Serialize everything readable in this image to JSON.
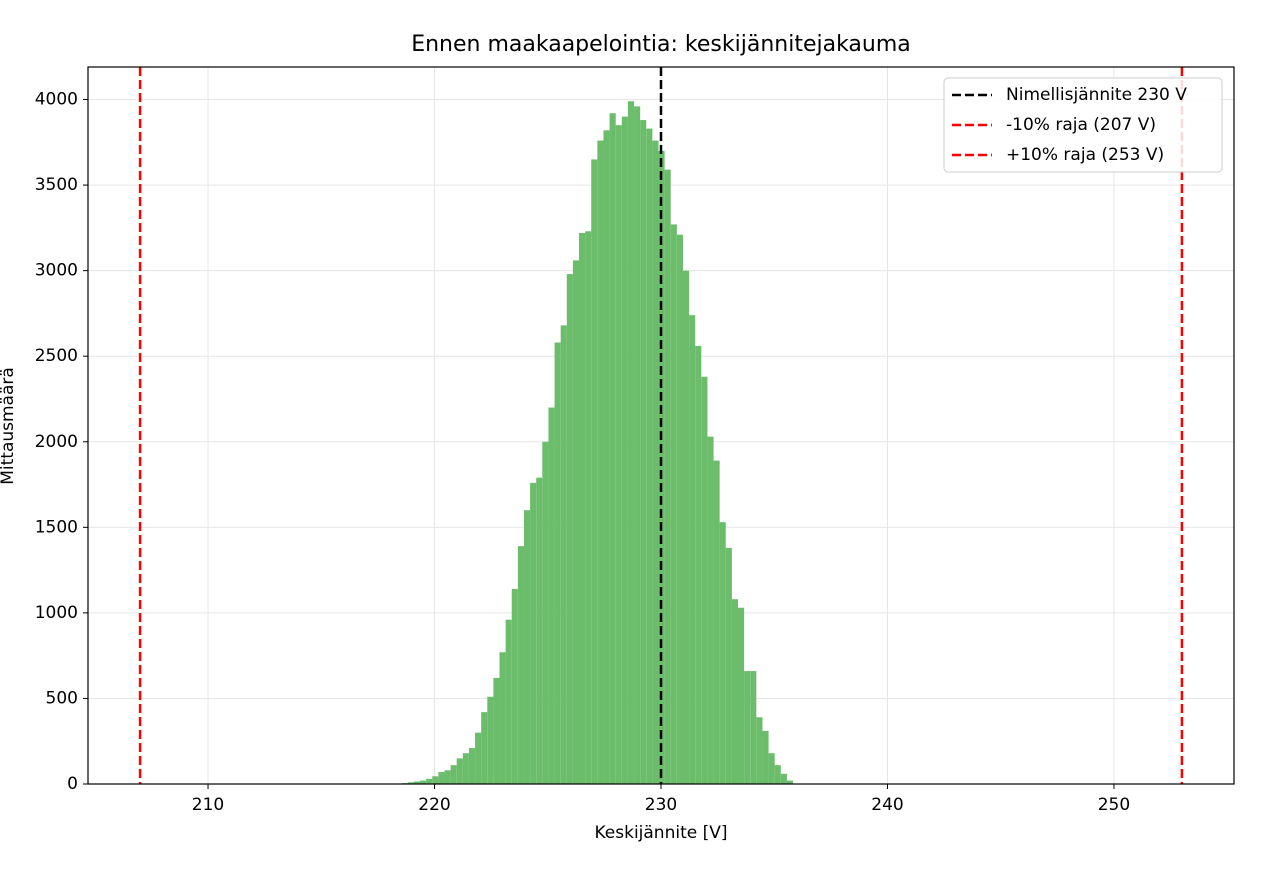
{
  "chart_data": {
    "type": "histogram",
    "title": "Ennen maakaapelointia: keskijännitejakauma",
    "xlabel": "Keskijännite [V]",
    "ylabel": "Mittausmäärä",
    "bins": [
      218.55,
      218.82,
      219.09,
      219.36,
      219.63,
      219.9,
      220.17,
      220.44,
      220.71,
      220.98,
      221.25,
      221.52,
      221.79,
      222.06,
      222.33,
      222.6,
      222.87,
      223.14,
      223.41,
      223.68,
      223.95,
      224.22,
      224.49,
      224.76,
      225.03,
      225.3,
      225.57,
      225.84,
      226.11,
      226.38,
      226.65,
      226.92,
      227.19,
      227.46,
      227.73,
      228.0,
      228.27,
      228.54,
      228.81,
      229.08,
      229.35,
      229.62,
      229.89,
      230.16,
      230.43,
      230.7,
      230.97,
      231.24,
      231.51,
      231.78,
      232.05,
      232.32,
      232.59,
      232.86,
      233.13,
      233.4,
      233.67,
      233.94,
      234.21,
      234.48,
      234.75,
      235.02,
      235.29,
      235.56,
      235.83
    ],
    "values": [
      5,
      10,
      15,
      20,
      30,
      45,
      70,
      80,
      110,
      150,
      180,
      210,
      300,
      420,
      510,
      620,
      770,
      960,
      1140,
      1390,
      1600,
      1760,
      1790,
      2000,
      2200,
      2580,
      2680,
      2980,
      3060,
      3220,
      3230,
      3650,
      3760,
      3820,
      3920,
      3850,
      3900,
      3990,
      3960,
      3880,
      3830,
      3760,
      3700,
      3590,
      3270,
      3210,
      3000,
      2740,
      2560,
      2380,
      2030,
      1890,
      1530,
      1380,
      1080,
      1030,
      660,
      660,
      390,
      310,
      180,
      110,
      60,
      20
    ],
    "color": "#6bbd6b",
    "vlines": [
      {
        "x": 230,
        "color": "#000000",
        "label": "Nimellisjännite 230 V"
      },
      {
        "x": 207,
        "color": "#ff0000",
        "label": "-10% raja (207 V)"
      },
      {
        "x": 253,
        "color": "#ff0000",
        "label": "+10% raja (253 V)"
      }
    ],
    "xlim": [
      204.7,
      255.3
    ],
    "xticks": [
      210,
      220,
      230,
      240,
      250
    ],
    "ylim": [
      0,
      4190
    ],
    "yticks": [
      0,
      500,
      1000,
      1500,
      2000,
      2500,
      3000,
      3500,
      4000
    ],
    "grid": true,
    "legend": "upper right"
  }
}
